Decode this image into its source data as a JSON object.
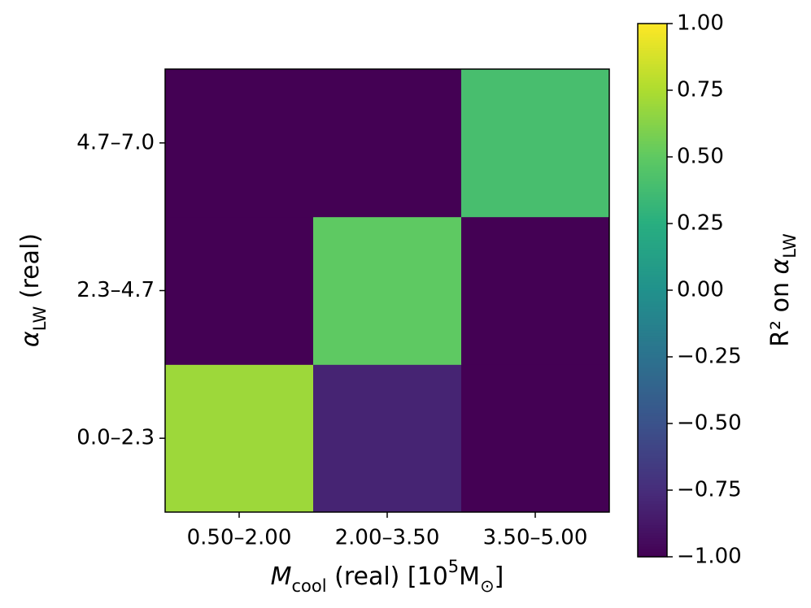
{
  "chart_data": {
    "type": "heatmap",
    "x_categories": [
      "0.50–2.00",
      "2.00–3.50",
      "3.50–5.00"
    ],
    "y_categories": [
      "0.0–2.3",
      "2.3–4.7",
      "4.7–7.0"
    ],
    "z": [
      [
        0.7,
        -0.8,
        -1.0
      ],
      [
        -1.0,
        0.5,
        -1.0
      ],
      [
        -1.0,
        -1.0,
        0.4
      ]
    ],
    "xlabel": [
      {
        "text": "M",
        "style": "italic"
      },
      {
        "text": "cool",
        "style": "sub"
      },
      {
        "text": " (real) [10"
      },
      {
        "text": "5",
        "style": "sup"
      },
      {
        "text": "M"
      },
      {
        "text": "⊙",
        "style": "sub"
      },
      {
        "text": "]"
      }
    ],
    "ylabel": [
      {
        "text": "α",
        "style": "italic"
      },
      {
        "text": "LW",
        "style": "sub"
      },
      {
        "text": " (real)"
      }
    ],
    "colorbar_label": [
      {
        "text": "R² on "
      },
      {
        "text": "α",
        "style": "italic"
      },
      {
        "text": "LW",
        "style": "sub"
      }
    ],
    "colormap": "viridis",
    "clim": [
      -1.0,
      1.0
    ],
    "cticks": [
      {
        "value": -1.0,
        "label": "−1.00"
      },
      {
        "value": -0.75,
        "label": "−0.75"
      },
      {
        "value": -0.5,
        "label": "−0.50"
      },
      {
        "value": -0.25,
        "label": "−0.25"
      },
      {
        "value": 0,
        "label": "0.00"
      },
      {
        "value": 0.25,
        "label": "0.25"
      },
      {
        "value": 0.5,
        "label": "0.50"
      },
      {
        "value": 0.75,
        "label": "0.75"
      },
      {
        "value": 1.0,
        "label": "1.00"
      }
    ]
  }
}
